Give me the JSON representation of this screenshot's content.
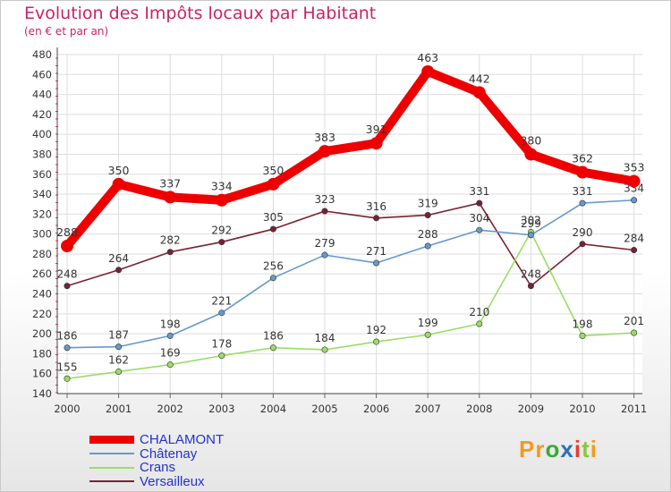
{
  "header": {
    "title": "Evolution des Impôts locaux par Habitant",
    "subtitle": "(en € et par an)"
  },
  "brand": {
    "parts": [
      "Pr",
      "o",
      "x",
      "i",
      "t",
      "i"
    ],
    "colors": [
      "#f39a1d",
      "#3aaa35",
      "#2a6fbf",
      "#e63d2e",
      "#8cc63f",
      "#f39a1d"
    ]
  },
  "chart_data": {
    "type": "line",
    "title": "Evolution des Impôts locaux par Habitant",
    "subtitle": "(en € et par an)",
    "x": [
      "2000",
      "2001",
      "2002",
      "2003",
      "2004",
      "2005",
      "2006",
      "2007",
      "2008",
      "2009",
      "2010",
      "2011"
    ],
    "ylim": [
      140,
      480
    ],
    "yticks": [
      140,
      160,
      180,
      200,
      220,
      240,
      260,
      280,
      300,
      320,
      340,
      360,
      380,
      400,
      420,
      440,
      460,
      480
    ],
    "grid": true,
    "legend": "bottom-left",
    "series": [
      {
        "name": "CHALAMONT",
        "color": "#ee0000",
        "values": [
          288,
          350,
          337,
          334,
          350,
          383,
          391,
          463,
          442,
          380,
          362,
          353
        ]
      },
      {
        "name": "Châtenay",
        "color": "#6699cc",
        "values": [
          186,
          187,
          198,
          221,
          256,
          279,
          271,
          288,
          304,
          299,
          331,
          334
        ]
      },
      {
        "name": "Crans",
        "color": "#99dd66",
        "values": [
          155,
          162,
          169,
          178,
          186,
          184,
          192,
          199,
          210,
          302,
          198,
          201
        ]
      },
      {
        "name": "Versailleux",
        "color": "#772233",
        "values": [
          248,
          264,
          282,
          292,
          305,
          323,
          316,
          319,
          331,
          248,
          290,
          284
        ]
      }
    ]
  }
}
